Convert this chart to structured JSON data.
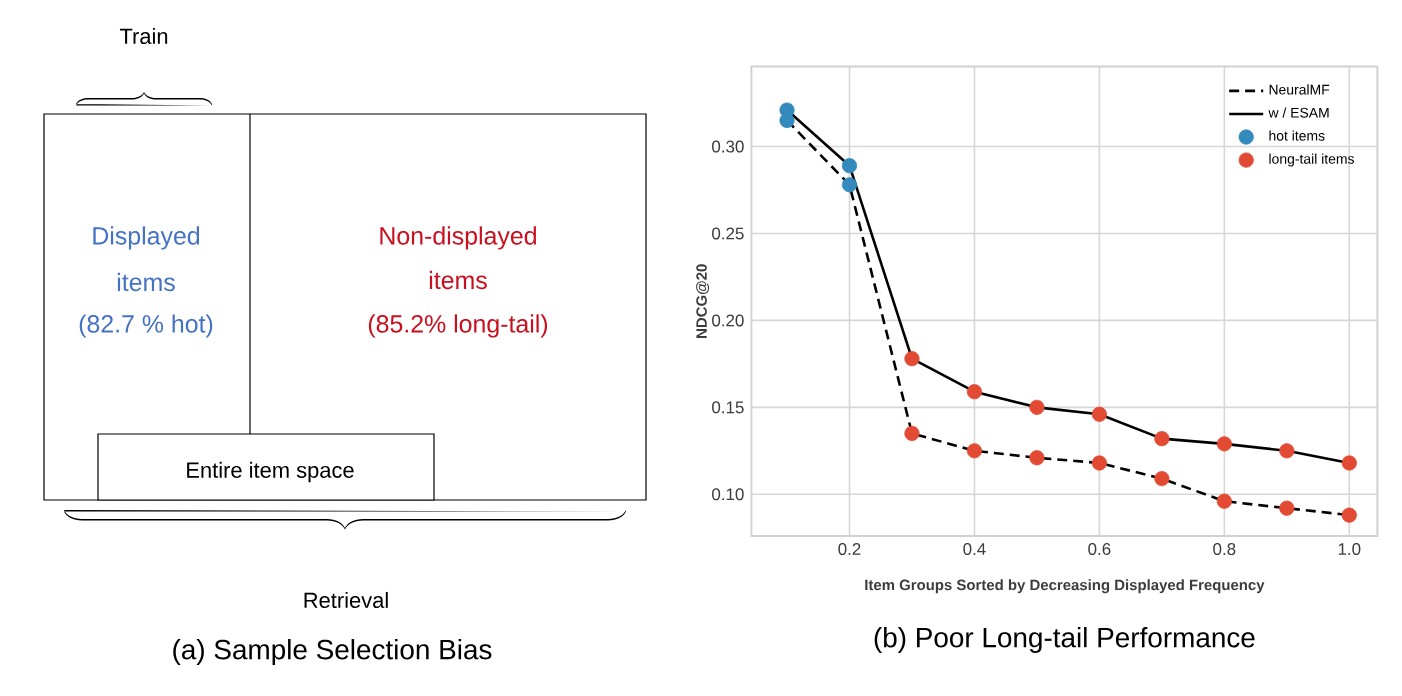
{
  "chart_data": [
    {
      "type": "other",
      "title": "(a) Sample Selection Bias",
      "annotations": [
        "Train",
        "Displayed",
        "items",
        "(82.7 % hot)",
        "Non-displayed",
        "items",
        "(85.2% long-tail)",
        "Entire item space",
        "Retrieval"
      ]
    },
    {
      "type": "line",
      "title": "(b) Poor Long-tail Performance",
      "xlabel": "Item Groups Sorted by Decreasing Displayed Frequency",
      "ylabel": "NDCG@20",
      "xlim": [
        0.043,
        1.045
      ],
      "ylim": [
        0.076,
        0.346
      ],
      "xticks": [
        0.2,
        0.4,
        0.6,
        0.8,
        {
          "value": 1.0,
          "label": "1.0"
        }
      ],
      "yticks": [
        {
          "value": 0.1,
          "label": "0.10"
        },
        0.15,
        {
          "value": 0.2,
          "label": "0.20"
        },
        0.25,
        {
          "value": 0.3,
          "label": "0.30"
        }
      ],
      "grid": true,
      "legend": "top right",
      "series": [
        {
          "name": "NeuralMF",
          "type": "line",
          "color": "#000000",
          "line_style": "dashed",
          "marker": "none",
          "x": [
            0.1,
            0.2,
            0.3,
            0.4,
            0.5,
            0.6,
            0.7,
            0.8,
            0.9,
            1.0
          ],
          "values": [
            0.315,
            0.278,
            0.135,
            0.125,
            0.121,
            0.118,
            0.109,
            0.096,
            0.092,
            0.088
          ]
        },
        {
          "name": "w / ESAM",
          "type": "line",
          "color": "#000000",
          "line_style": "solid",
          "marker": "none",
          "x": [
            0.1,
            0.2,
            0.3,
            0.4,
            0.5,
            0.6,
            0.7,
            0.8,
            0.9,
            1.0
          ],
          "values": [
            0.321,
            0.289,
            0.178,
            0.159,
            0.15,
            0.146,
            0.132,
            0.129,
            0.125,
            0.118
          ]
        },
        {
          "name": "hot items",
          "type": "scatter",
          "color": "#348abd",
          "marker": "circle",
          "x": [
            0.1,
            0.1,
            0.2,
            0.2
          ],
          "values": [
            0.321,
            0.315,
            0.289,
            0.278
          ]
        },
        {
          "name": "long-tail items",
          "type": "scatter",
          "color": "#e24a33",
          "marker": "circle",
          "x": [
            0.3,
            0.4,
            0.5,
            0.6,
            0.7,
            0.8,
            0.9,
            1.0,
            0.3,
            0.4,
            0.5,
            0.6,
            0.7,
            0.8,
            0.9,
            1.0
          ],
          "values": [
            0.178,
            0.159,
            0.15,
            0.146,
            0.132,
            0.129,
            0.125,
            0.118,
            0.135,
            0.125,
            0.121,
            0.118,
            0.109,
            0.096,
            0.092,
            0.088
          ]
        }
      ]
    }
  ]
}
